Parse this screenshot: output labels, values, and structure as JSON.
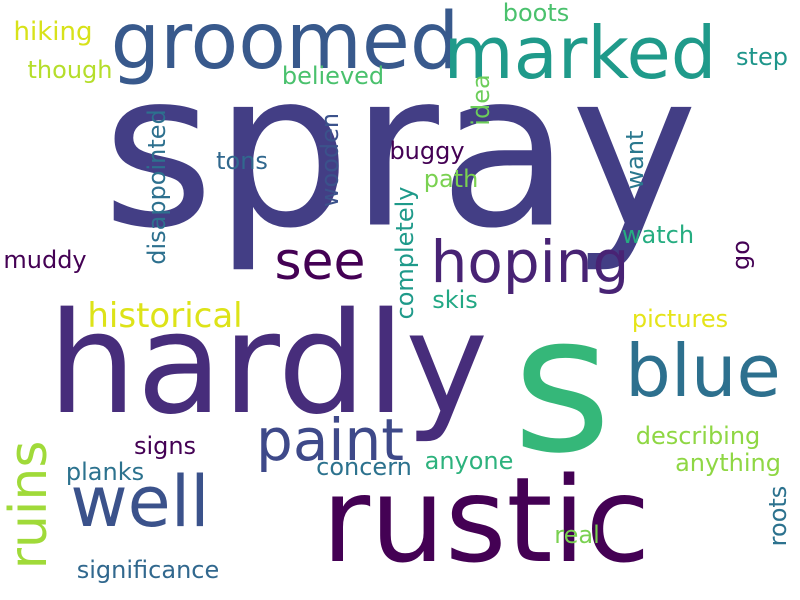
{
  "words": [
    {
      "id": "spray",
      "text": "spray",
      "color": "#433e85"
    },
    {
      "id": "s",
      "text": "s",
      "color": "#35b779"
    },
    {
      "id": "hardly",
      "text": "hardly",
      "color": "#472d7b"
    },
    {
      "id": "rustic",
      "text": "rustic",
      "color": "#440154"
    },
    {
      "id": "groomed",
      "text": "groomed",
      "color": "#38598c"
    },
    {
      "id": "marked",
      "text": "marked",
      "color": "#1f9a8a"
    },
    {
      "id": "blue",
      "text": "blue",
      "color": "#2d708e"
    },
    {
      "id": "well",
      "text": "well",
      "color": "#3b528b"
    },
    {
      "id": "paint",
      "text": "paint",
      "color": "#3e4989"
    },
    {
      "id": "hoping",
      "text": "hoping",
      "color": "#482374"
    },
    {
      "id": "see",
      "text": "see",
      "color": "#440154"
    },
    {
      "id": "ruins",
      "text": "ruins",
      "color": "#a0da39"
    },
    {
      "id": "historical",
      "text": "historical",
      "color": "#dde318"
    },
    {
      "id": "hiking",
      "text": "hiking",
      "color": "#d8e219"
    },
    {
      "id": "though",
      "text": "though",
      "color": "#b5de2b"
    },
    {
      "id": "believed",
      "text": "believed",
      "color": "#4ac16d"
    },
    {
      "id": "boots",
      "text": "boots",
      "color": "#4ac16d"
    },
    {
      "id": "step",
      "text": "step",
      "color": "#1f968b"
    },
    {
      "id": "idea",
      "text": "idea",
      "color": "#6ccd5a"
    },
    {
      "id": "disappointed",
      "text": "disappointed",
      "color": "#2d708e"
    },
    {
      "id": "tons",
      "text": "tons",
      "color": "#31688e"
    },
    {
      "id": "wooden",
      "text": "wooden",
      "color": "#3b528b"
    },
    {
      "id": "buggy",
      "text": "buggy",
      "color": "#440154"
    },
    {
      "id": "path",
      "text": "path",
      "color": "#7ad151"
    },
    {
      "id": "want",
      "text": "want",
      "color": "#2a788e"
    },
    {
      "id": "completely",
      "text": "completely",
      "color": "#1f9a8a"
    },
    {
      "id": "watch",
      "text": "watch",
      "color": "#26ad81"
    },
    {
      "id": "go",
      "text": "go",
      "color": "#440154"
    },
    {
      "id": "muddy",
      "text": "muddy",
      "color": "#440154"
    },
    {
      "id": "skis",
      "text": "skis",
      "color": "#22a884"
    },
    {
      "id": "pictures",
      "text": "pictures",
      "color": "#e5e419"
    },
    {
      "id": "signs",
      "text": "signs",
      "color": "#440154"
    },
    {
      "id": "describing",
      "text": "describing",
      "color": "#8fd744"
    },
    {
      "id": "planks",
      "text": "planks",
      "color": "#2c728e"
    },
    {
      "id": "concern",
      "text": "concern",
      "color": "#2c728e"
    },
    {
      "id": "anyone",
      "text": "anyone",
      "color": "#2db27d"
    },
    {
      "id": "anything",
      "text": "anything",
      "color": "#8fd744"
    },
    {
      "id": "roots",
      "text": "roots",
      "color": "#2c728e"
    },
    {
      "id": "real",
      "text": "real",
      "color": "#7ad151"
    },
    {
      "id": "significance",
      "text": "significance",
      "color": "#31688e"
    }
  ]
}
